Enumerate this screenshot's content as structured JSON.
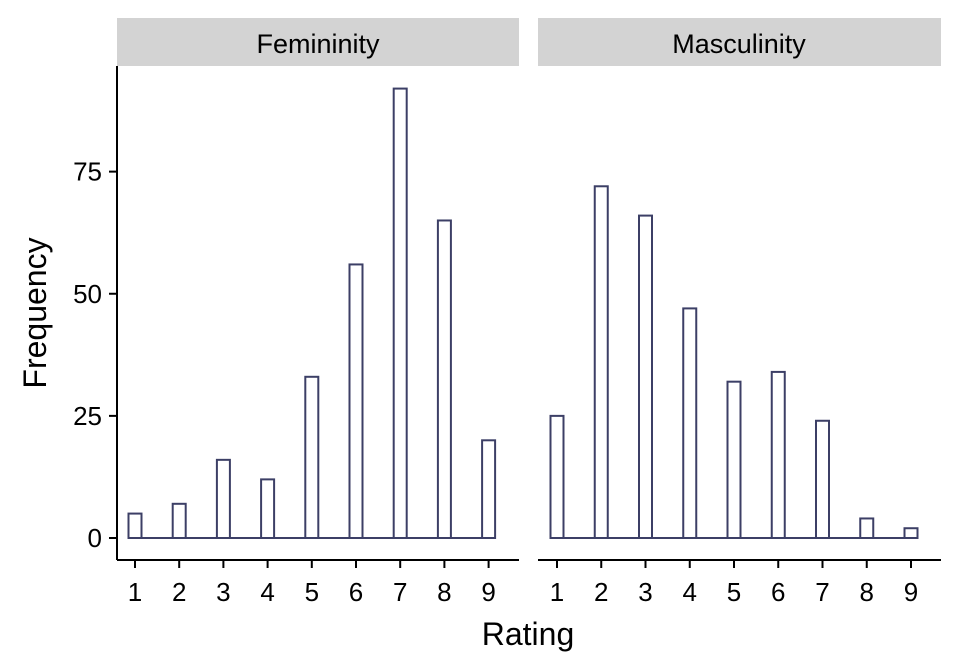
{
  "chart_data": [
    {
      "type": "bar",
      "panel_title": "Femininity",
      "categories": [
        "1",
        "2",
        "3",
        "4",
        "5",
        "6",
        "7",
        "8",
        "9"
      ],
      "values": [
        5,
        7,
        16,
        12,
        33,
        56,
        92,
        65,
        20
      ],
      "xlabel": "Rating",
      "ylabel": "Frequency",
      "yticks": [
        "0",
        "25",
        "50",
        "75"
      ],
      "ylim": [
        0,
        96
      ],
      "grid": false,
      "bar_fill": "#ffffff",
      "bar_outline": "#3c3f66"
    },
    {
      "type": "bar",
      "panel_title": "Masculinity",
      "categories": [
        "1",
        "2",
        "3",
        "4",
        "5",
        "6",
        "7",
        "8",
        "9"
      ],
      "values": [
        25,
        72,
        66,
        47,
        32,
        34,
        24,
        4,
        2
      ],
      "xlabel": "Rating",
      "ylabel": "Frequency",
      "yticks": [
        "0",
        "25",
        "50",
        "75"
      ],
      "ylim": [
        0,
        96
      ],
      "grid": false,
      "bar_fill": "#ffffff",
      "bar_outline": "#3c3f66"
    }
  ],
  "axes": {
    "xlabel": "Rating",
    "ylabel": "Frequency"
  },
  "colors": {
    "strip_background": "#d3d3d3",
    "bar_outline": "#3c3f66"
  }
}
